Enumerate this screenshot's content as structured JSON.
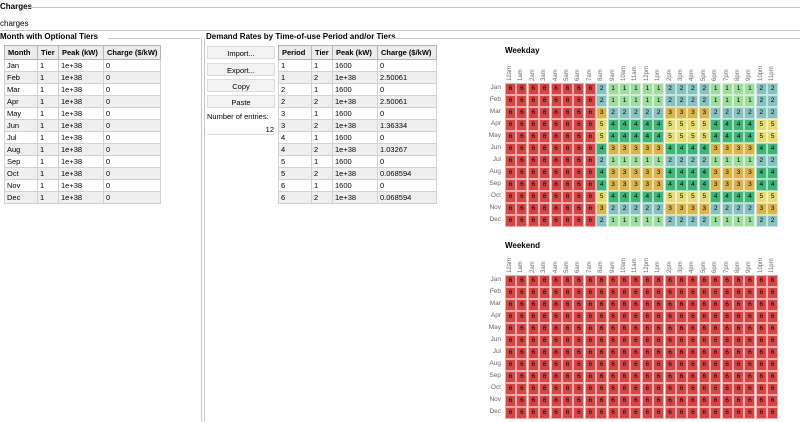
{
  "header": {
    "title": "Charges",
    "subtitle": "charges"
  },
  "monthly": {
    "title": "Month with Optional Tiers",
    "columns": [
      "Month",
      "Tier",
      "Peak (kW)",
      "Charge ($/kW)"
    ],
    "rows": [
      [
        "Jan",
        "1",
        "1e+38",
        "0"
      ],
      [
        "Feb",
        "1",
        "1e+38",
        "0"
      ],
      [
        "Mar",
        "1",
        "1e+38",
        "0"
      ],
      [
        "Apr",
        "1",
        "1e+38",
        "0"
      ],
      [
        "May",
        "1",
        "1e+38",
        "0"
      ],
      [
        "Jun",
        "1",
        "1e+38",
        "0"
      ],
      [
        "Jul",
        "1",
        "1e+38",
        "0"
      ],
      [
        "Aug",
        "1",
        "1e+38",
        "0"
      ],
      [
        "Sep",
        "1",
        "1e+38",
        "0"
      ],
      [
        "Oct",
        "1",
        "1e+38",
        "0"
      ],
      [
        "Nov",
        "1",
        "1e+38",
        "0"
      ],
      [
        "Dec",
        "1",
        "1e+38",
        "0"
      ]
    ]
  },
  "demand": {
    "title": "Demand Rates by Time-of-use Period and/or Tiers",
    "buttons": {
      "import": "Import...",
      "export": "Export...",
      "copy": "Copy",
      "paste": "Paste"
    },
    "entries_label": "Number of entries:",
    "entries_value": "12",
    "columns": [
      "Period",
      "Tier",
      "Peak (kW)",
      "Charge ($/kW)"
    ],
    "rows": [
      [
        "1",
        "1",
        "1600",
        "0"
      ],
      [
        "1",
        "2",
        "1e+38",
        "2.50061"
      ],
      [
        "2",
        "1",
        "1600",
        "0"
      ],
      [
        "2",
        "2",
        "1e+38",
        "2.50061"
      ],
      [
        "3",
        "1",
        "1600",
        "0"
      ],
      [
        "3",
        "2",
        "1e+38",
        "1.36334"
      ],
      [
        "4",
        "1",
        "1600",
        "0"
      ],
      [
        "4",
        "2",
        "1e+38",
        "1.03267"
      ],
      [
        "5",
        "1",
        "1600",
        "0"
      ],
      [
        "5",
        "2",
        "1e+38",
        "0.068594"
      ],
      [
        "6",
        "1",
        "1600",
        "0"
      ],
      [
        "6",
        "2",
        "1e+38",
        "0.068594"
      ]
    ]
  },
  "schedule": {
    "hours": [
      "12am",
      "1am",
      "2am",
      "3am",
      "4am",
      "5am",
      "6am",
      "7am",
      "8am",
      "9am",
      "10am",
      "11am",
      "12pm",
      "1pm",
      "2pm",
      "3pm",
      "4pm",
      "5pm",
      "6pm",
      "7pm",
      "8pm",
      "9pm",
      "10pm",
      "11pm"
    ],
    "months": [
      "Jan",
      "Feb",
      "Mar",
      "Apr",
      "May",
      "Jun",
      "Jul",
      "Aug",
      "Sep",
      "Oct",
      "Nov",
      "Dec"
    ],
    "colors": {
      "1": "#9fdc9f",
      "2": "#88c2c0",
      "3": "#d9b54e",
      "4": "#3fb579",
      "5": "#e5dc74",
      "6": "#d64545"
    },
    "weekday": {
      "title": "Weekday",
      "rows": [
        [
          6,
          6,
          6,
          6,
          6,
          6,
          6,
          6,
          2,
          1,
          1,
          1,
          1,
          1,
          2,
          2,
          2,
          2,
          1,
          1,
          1,
          1,
          2,
          2
        ],
        [
          6,
          6,
          6,
          6,
          6,
          6,
          6,
          6,
          2,
          1,
          1,
          1,
          1,
          1,
          2,
          2,
          2,
          2,
          1,
          1,
          1,
          1,
          2,
          2
        ],
        [
          6,
          6,
          6,
          6,
          6,
          6,
          6,
          6,
          3,
          2,
          2,
          2,
          2,
          2,
          3,
          3,
          3,
          3,
          2,
          2,
          2,
          2,
          2,
          2
        ],
        [
          6,
          6,
          6,
          6,
          6,
          6,
          6,
          6,
          5,
          4,
          4,
          4,
          4,
          4,
          5,
          5,
          5,
          5,
          4,
          4,
          4,
          4,
          5,
          5
        ],
        [
          6,
          6,
          6,
          6,
          6,
          6,
          6,
          6,
          5,
          4,
          4,
          4,
          4,
          4,
          5,
          5,
          5,
          5,
          4,
          4,
          4,
          4,
          5,
          5
        ],
        [
          6,
          6,
          6,
          6,
          6,
          6,
          6,
          6,
          4,
          3,
          3,
          3,
          3,
          3,
          4,
          4,
          4,
          4,
          3,
          3,
          3,
          3,
          4,
          4
        ],
        [
          6,
          6,
          6,
          6,
          6,
          6,
          6,
          6,
          2,
          1,
          1,
          1,
          1,
          1,
          2,
          2,
          2,
          2,
          1,
          1,
          1,
          1,
          2,
          2
        ],
        [
          6,
          6,
          6,
          6,
          6,
          6,
          6,
          6,
          4,
          3,
          3,
          3,
          3,
          3,
          4,
          4,
          4,
          4,
          3,
          3,
          3,
          3,
          4,
          4
        ],
        [
          6,
          6,
          6,
          6,
          6,
          6,
          6,
          6,
          4,
          3,
          3,
          3,
          3,
          3,
          4,
          4,
          4,
          4,
          3,
          3,
          3,
          3,
          4,
          4
        ],
        [
          6,
          6,
          6,
          6,
          6,
          6,
          6,
          6,
          5,
          4,
          4,
          4,
          4,
          4,
          5,
          5,
          5,
          5,
          4,
          4,
          4,
          4,
          5,
          5
        ],
        [
          6,
          6,
          6,
          6,
          6,
          6,
          6,
          6,
          3,
          2,
          2,
          2,
          2,
          2,
          3,
          3,
          3,
          3,
          2,
          2,
          2,
          2,
          3,
          3
        ],
        [
          6,
          6,
          6,
          6,
          6,
          6,
          6,
          6,
          2,
          1,
          1,
          1,
          1,
          1,
          2,
          2,
          2,
          2,
          1,
          1,
          1,
          1,
          2,
          2
        ]
      ]
    },
    "weekend": {
      "title": "Weekend",
      "value": 6
    }
  }
}
